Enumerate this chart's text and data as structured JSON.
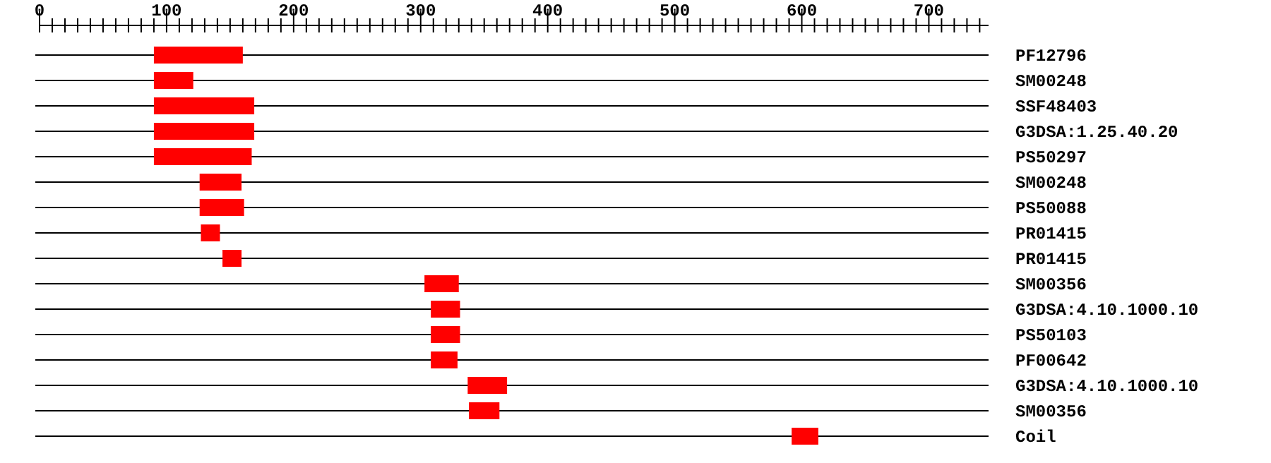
{
  "chart_data": {
    "type": "bar",
    "orientation": "horizontal",
    "categories": [
      "PF12796",
      "SM00248",
      "SSF48403",
      "G3DSA:1.25.40.20",
      "PS50297",
      "SM00248",
      "PS50088",
      "PR01415",
      "PR01415",
      "SM00356",
      "G3DSA:4.10.1000.10",
      "PS50103",
      "PF00642",
      "G3DSA:4.10.1000.10",
      "SM00356",
      "Coil"
    ],
    "base": [
      90,
      90,
      90,
      90,
      90,
      126,
      126,
      127,
      144,
      303,
      308,
      308,
      308,
      337,
      338,
      592
    ],
    "values": [
      70,
      31,
      79,
      79,
      77,
      33,
      35,
      15,
      15,
      27,
      23,
      23,
      21,
      31,
      24,
      21
    ],
    "color": "#ff0000",
    "xlim": [
      0,
      747
    ],
    "grid": "y",
    "xticks": [
      0,
      {
        "value": 10,
        "label": null
      },
      {
        "value": 20,
        "label": null
      },
      {
        "value": 30,
        "label": null
      },
      {
        "value": 40,
        "label": null
      },
      {
        "value": 50,
        "label": null
      },
      {
        "value": 60,
        "label": null
      },
      {
        "value": 70,
        "label": null
      },
      {
        "value": 80,
        "label": null
      },
      {
        "value": 90,
        "label": null
      },
      100,
      {
        "value": 110,
        "label": null
      },
      {
        "value": 120,
        "label": null
      },
      {
        "value": 130,
        "label": null
      },
      {
        "value": 140,
        "label": null
      },
      {
        "value": 150,
        "label": null
      },
      {
        "value": 160,
        "label": null
      },
      {
        "value": 170,
        "label": null
      },
      {
        "value": 180,
        "label": null
      },
      {
        "value": 190,
        "label": null
      },
      200,
      {
        "value": 210,
        "label": null
      },
      {
        "value": 220,
        "label": null
      },
      {
        "value": 230,
        "label": null
      },
      {
        "value": 240,
        "label": null
      },
      {
        "value": 250,
        "label": null
      },
      {
        "value": 260,
        "label": null
      },
      {
        "value": 270,
        "label": null
      },
      {
        "value": 280,
        "label": null
      },
      {
        "value": 290,
        "label": null
      },
      300,
      {
        "value": 310,
        "label": null
      },
      {
        "value": 320,
        "label": null
      },
      {
        "value": 330,
        "label": null
      },
      {
        "value": 340,
        "label": null
      },
      {
        "value": 350,
        "label": null
      },
      {
        "value": 360,
        "label": null
      },
      {
        "value": 370,
        "label": null
      },
      {
        "value": 380,
        "label": null
      },
      {
        "value": 390,
        "label": null
      },
      400,
      {
        "value": 410,
        "label": null
      },
      {
        "value": 420,
        "label": null
      },
      {
        "value": 430,
        "label": null
      },
      {
        "value": 440,
        "label": null
      },
      {
        "value": 450,
        "label": null
      },
      {
        "value": 460,
        "label": null
      },
      {
        "value": 470,
        "label": null
      },
      {
        "value": 480,
        "label": null
      },
      {
        "value": 490,
        "label": null
      },
      500,
      {
        "value": 510,
        "label": null
      },
      {
        "value": 520,
        "label": null
      },
      {
        "value": 530,
        "label": null
      },
      {
        "value": 540,
        "label": null
      },
      {
        "value": 550,
        "label": null
      },
      {
        "value": 560,
        "label": null
      },
      {
        "value": 570,
        "label": null
      },
      {
        "value": 580,
        "label": null
      },
      {
        "value": 590,
        "label": null
      },
      600,
      {
        "value": 610,
        "label": null
      },
      {
        "value": 620,
        "label": null
      },
      {
        "value": 630,
        "label": null
      },
      {
        "value": 640,
        "label": null
      },
      {
        "value": 650,
        "label": null
      },
      {
        "value": 660,
        "label": null
      },
      {
        "value": 670,
        "label": null
      },
      {
        "value": 680,
        "label": null
      },
      {
        "value": 690,
        "label": null
      },
      700,
      {
        "value": 710,
        "label": null
      },
      {
        "value": 720,
        "label": null
      },
      {
        "value": 730,
        "label": null
      },
      {
        "value": 740,
        "label": null
      }
    ]
  }
}
